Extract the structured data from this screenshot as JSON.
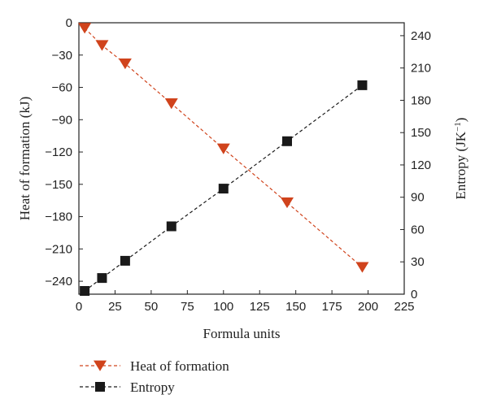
{
  "chart_data": {
    "type": "scatter",
    "xlabel": "Formula units",
    "y1label": "Heat of formation (kJ)",
    "y2label_main": "Entropy (JK",
    "y2label_sup": "−1",
    "y2label_close": ")",
    "xlim": [
      0,
      225
    ],
    "y1lim": [
      -252,
      0
    ],
    "y2lim": [
      0,
      252
    ],
    "x_ticks": [
      0,
      25,
      50,
      75,
      100,
      125,
      150,
      175,
      200,
      225
    ],
    "y1_ticks": [
      0,
      -30,
      -60,
      -90,
      -120,
      -150,
      -180,
      -210,
      -240
    ],
    "y1_tick_labels": [
      "0",
      "−30",
      "−60",
      "−90",
      "−120",
      "−150",
      "−180",
      "−210",
      "−240"
    ],
    "y2_ticks": [
      0,
      30,
      60,
      90,
      120,
      150,
      180,
      210,
      240
    ],
    "series": [
      {
        "name": "Heat of formation",
        "axis": "left",
        "marker": "triangle-down",
        "color": "#d0431c",
        "x": [
          4,
          16,
          32,
          64,
          100,
          144,
          196
        ],
        "y": [
          -5,
          -21,
          -38,
          -75,
          -117,
          -167,
          -227
        ]
      },
      {
        "name": "Entropy",
        "axis": "right",
        "marker": "square",
        "color": "#1a1a1a",
        "x": [
          4,
          16,
          32,
          64,
          100,
          144,
          196
        ],
        "y": [
          3,
          15,
          31,
          63,
          98,
          142,
          194
        ]
      }
    ],
    "legend_position": "bottom-left"
  }
}
